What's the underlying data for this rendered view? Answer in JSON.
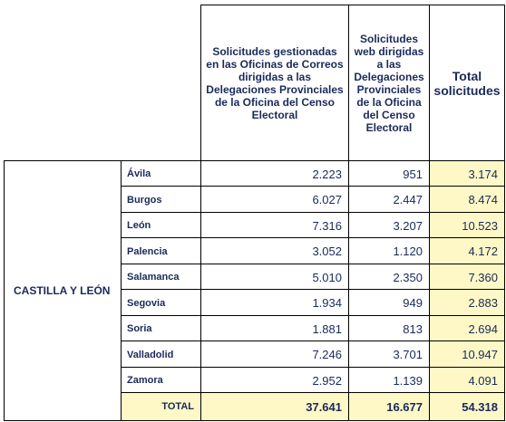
{
  "table": {
    "headers": {
      "oficinas": "Solicitudes gestionadas en las Oficinas de Correos dirigidas a las Delegaciones Provinciales de la Oficina del Censo Electoral",
      "web": "Solicitudes web dirigidas a las Delegaciones Provinciales de la Oficina del Censo Electoral",
      "total": "Total solicitudes"
    },
    "region": "CASTILLA Y LEÓN",
    "rows": [
      {
        "province": "Ávila",
        "oficinas": "2.223",
        "web": "951",
        "total": "3.174"
      },
      {
        "province": "Burgos",
        "oficinas": "6.027",
        "web": "2.447",
        "total": "8.474"
      },
      {
        "province": "León",
        "oficinas": "7.316",
        "web": "3.207",
        "total": "10.523"
      },
      {
        "province": "Palencia",
        "oficinas": "3.052",
        "web": "1.120",
        "total": "4.172"
      },
      {
        "province": "Salamanca",
        "oficinas": "5.010",
        "web": "2.350",
        "total": "7.360"
      },
      {
        "province": "Segovia",
        "oficinas": "1.934",
        "web": "949",
        "total": "2.883"
      },
      {
        "province": "Soria",
        "oficinas": "1.881",
        "web": "813",
        "total": "2.694"
      },
      {
        "province": "Valladolid",
        "oficinas": "7.246",
        "web": "3.701",
        "total": "10.947"
      },
      {
        "province": "Zamora",
        "oficinas": "2.952",
        "web": "1.139",
        "total": "4.091"
      }
    ],
    "total_row": {
      "label": "TOTAL",
      "oficinas": "37.641",
      "web": "16.677",
      "total": "54.318"
    }
  }
}
